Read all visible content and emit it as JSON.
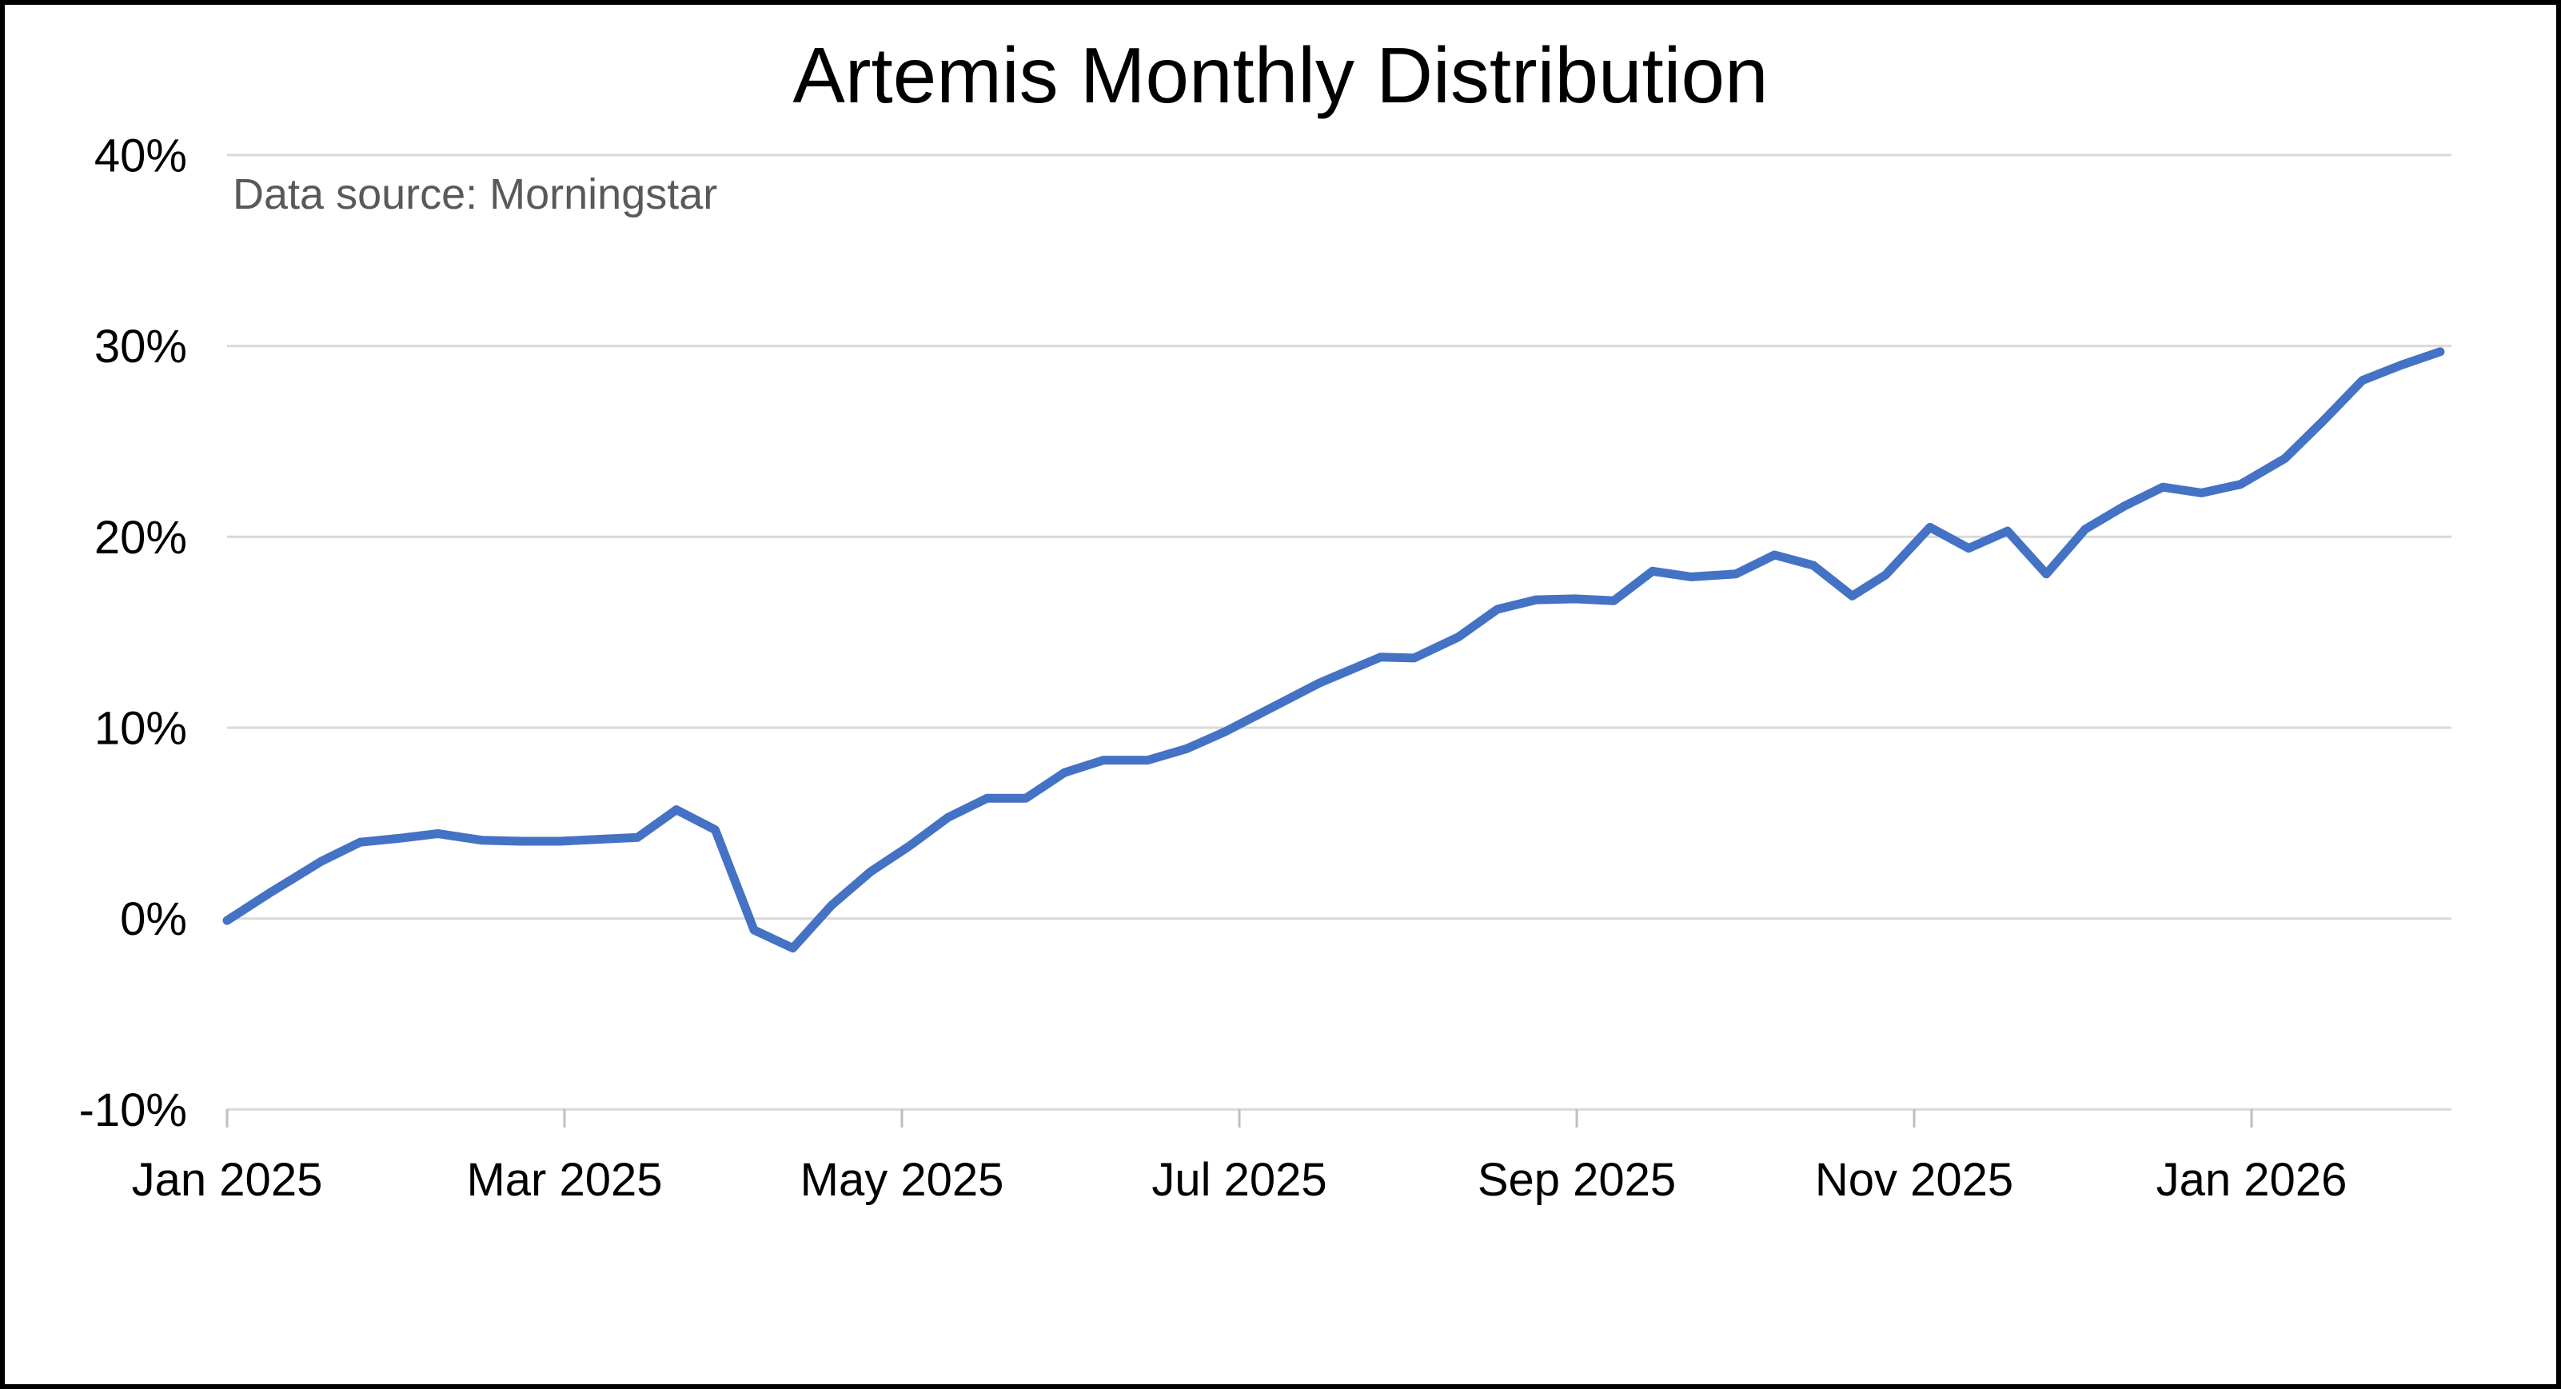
{
  "title": "Artemis Monthly Distribution",
  "subtitle": "Data source: Morningstar",
  "colors": {
    "line": "#4472C4",
    "gridline": "#D9D9D9",
    "axis_tick": "#BFBFBF",
    "title_text": "#000000",
    "subtitle_text": "#595959",
    "label_text": "#000000",
    "background": "#FFFFFF",
    "border": "#000000"
  },
  "chart_data": {
    "type": "line",
    "title": "Artemis Monthly Distribution",
    "annotation": "Data source: Morningstar",
    "series_name": "Artemis Monthly Distribution",
    "legend_position": "none",
    "grid": true,
    "ylim": [
      -10,
      40
    ],
    "y_tick_values": [
      40,
      30,
      20,
      10,
      0,
      -10
    ],
    "y_tick_labels": [
      "40%",
      "30%",
      "20%",
      "10%",
      "0%",
      "-10%"
    ],
    "x_tick_labels": [
      "Jan 2025",
      "Mar 2025",
      "May 2025",
      "Jul 2025",
      "Sep 2025",
      "Nov 2025",
      "Jan 2026"
    ],
    "x_unit": "weekly dates",
    "y_unit": "percent",
    "dates": [
      "2025-01-01",
      "2025-01-09",
      "2025-01-18",
      "2025-01-25",
      "2025-02-01",
      "2025-02-08",
      "2025-02-16",
      "2025-02-23",
      "2025-03-02",
      "2025-03-09",
      "2025-03-16",
      "2025-03-23",
      "2025-03-30",
      "2025-04-06",
      "2025-04-13",
      "2025-04-20",
      "2025-04-27",
      "2025-05-04",
      "2025-05-11",
      "2025-05-18",
      "2025-05-25",
      "2025-06-01",
      "2025-06-08",
      "2025-06-16",
      "2025-06-23",
      "2025-06-30",
      "2025-07-10",
      "2025-07-17",
      "2025-07-28",
      "2025-08-03",
      "2025-08-11",
      "2025-08-18",
      "2025-08-25",
      "2025-09-01",
      "2025-09-08",
      "2025-09-15",
      "2025-09-22",
      "2025-09-30",
      "2025-10-07",
      "2025-10-14",
      "2025-10-21",
      "2025-10-27",
      "2025-11-04",
      "2025-11-11",
      "2025-11-18",
      "2025-11-25",
      "2025-12-02",
      "2025-12-09",
      "2025-12-16",
      "2025-12-23",
      "2025-12-30",
      "2026-01-07",
      "2026-01-14",
      "2026-01-21",
      "2026-01-28",
      "2026-02-04"
    ],
    "values_pct": [
      -0.1,
      1.4,
      3.0,
      4.0,
      4.2,
      4.45,
      4.1,
      4.05,
      4.05,
      4.15,
      4.25,
      5.7,
      4.65,
      -0.6,
      -1.55,
      0.7,
      2.45,
      3.8,
      5.3,
      6.3,
      6.3,
      7.65,
      8.3,
      8.3,
      8.9,
      9.8,
      11.3,
      12.35,
      13.7,
      13.65,
      14.75,
      16.2,
      16.7,
      16.75,
      16.65,
      18.2,
      17.9,
      18.05,
      19.05,
      18.5,
      16.9,
      18.0,
      20.5,
      19.4,
      20.3,
      18.05,
      20.4,
      21.6,
      22.6,
      22.3,
      22.75,
      24.1,
      26.1,
      28.2,
      29.0,
      29.7
    ]
  }
}
